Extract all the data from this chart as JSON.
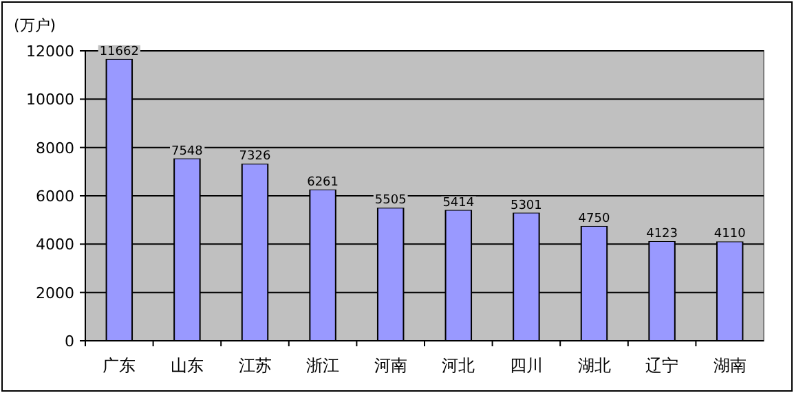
{
  "chart_data": {
    "type": "bar",
    "ylabel": "(万户)",
    "categories": [
      "广东",
      "山东",
      "江苏",
      "浙江",
      "河南",
      "河北",
      "四川",
      "湖北",
      "辽宁",
      "湖南"
    ],
    "values": [
      11662,
      7548,
      7326,
      6261,
      5505,
      5414,
      5301,
      4750,
      4123,
      4110
    ],
    "color": "#9999ff",
    "ylim": [
      0,
      12000
    ],
    "yticks": [
      0,
      2000,
      4000,
      6000,
      8000,
      10000,
      12000
    ],
    "grid": "y",
    "data_labels": true
  }
}
